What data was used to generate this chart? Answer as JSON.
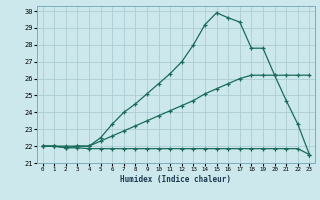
{
  "xlabel": "Humidex (Indice chaleur)",
  "bg_color": "#cce8ec",
  "grid_color": "#aacdd4",
  "line_color": "#1a6b5a",
  "xlim": [
    -0.5,
    23.5
  ],
  "ylim": [
    21,
    30.3
  ],
  "xticks": [
    0,
    1,
    2,
    3,
    4,
    5,
    6,
    7,
    8,
    9,
    10,
    11,
    12,
    13,
    14,
    15,
    16,
    17,
    18,
    19,
    20,
    21,
    22,
    23
  ],
  "yticks": [
    21,
    22,
    23,
    24,
    25,
    26,
    27,
    28,
    29,
    30
  ],
  "line1_x": [
    0,
    1,
    2,
    3,
    4,
    5,
    6,
    7,
    8,
    9,
    10,
    11,
    12,
    13,
    14,
    15,
    16,
    17,
    18,
    19,
    20,
    21,
    22,
    23
  ],
  "line1_y": [
    22.0,
    22.0,
    21.9,
    21.9,
    21.85,
    21.85,
    21.85,
    21.85,
    21.85,
    21.85,
    21.85,
    21.85,
    21.85,
    21.85,
    21.85,
    21.85,
    21.85,
    21.85,
    21.85,
    21.85,
    21.85,
    21.85,
    21.85,
    21.5
  ],
  "line2_x": [
    0,
    1,
    2,
    3,
    4,
    5,
    6,
    7,
    8,
    9,
    10,
    11,
    12,
    13,
    14,
    15,
    16,
    17,
    18,
    19,
    20,
    21,
    22,
    23
  ],
  "line2_y": [
    22.0,
    22.0,
    22.0,
    22.0,
    22.0,
    22.3,
    22.6,
    22.9,
    23.2,
    23.5,
    23.8,
    24.1,
    24.4,
    24.7,
    25.1,
    25.4,
    25.7,
    26.0,
    26.2,
    26.2,
    26.2,
    26.2,
    26.2,
    26.2
  ],
  "line3_x": [
    0,
    1,
    2,
    3,
    4,
    5,
    6,
    7,
    8,
    9,
    10,
    11,
    12,
    13,
    14,
    15,
    16,
    17,
    18,
    19,
    20,
    21,
    22,
    23
  ],
  "line3_y": [
    22.0,
    22.0,
    21.9,
    22.0,
    22.0,
    22.5,
    23.3,
    24.0,
    24.5,
    25.1,
    25.7,
    26.3,
    27.0,
    28.0,
    29.2,
    29.9,
    29.6,
    29.35,
    27.8,
    27.8,
    26.2,
    24.7,
    23.3,
    21.5
  ],
  "marker": "+",
  "markersize": 3,
  "linewidth": 0.9
}
